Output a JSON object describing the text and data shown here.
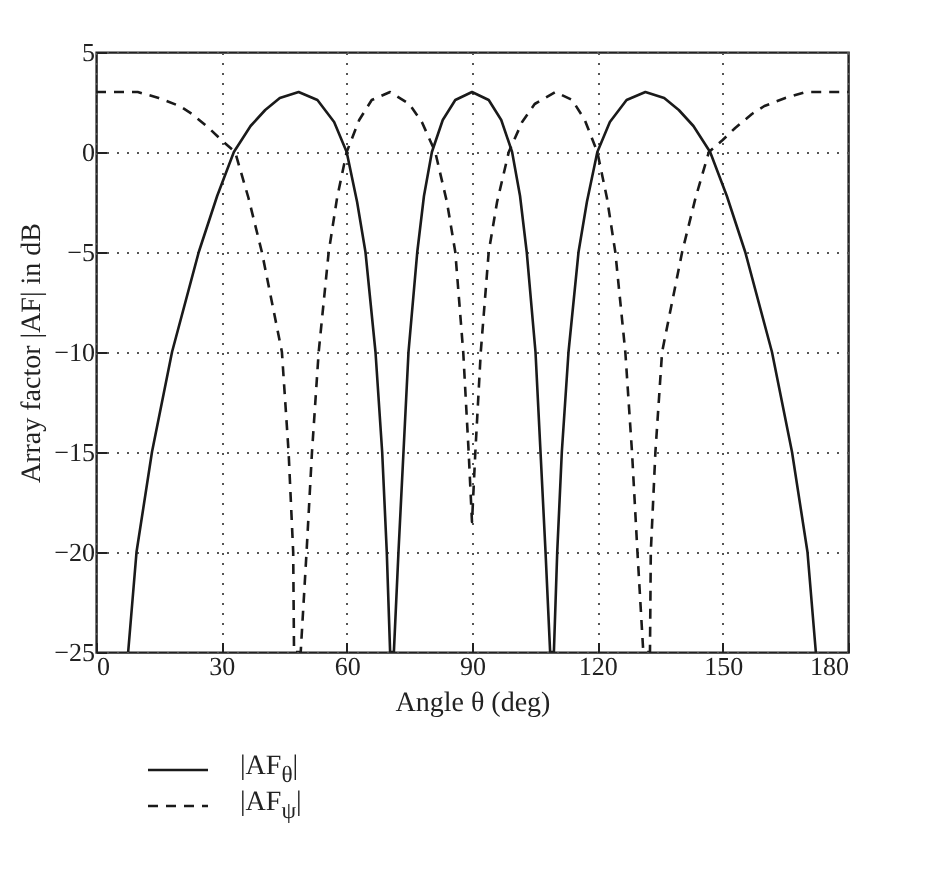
{
  "chart_data": {
    "type": "line",
    "xlabel": "Angle θ (deg)",
    "ylabel": "Array factor |AF| in dB",
    "xlim": [
      0,
      180
    ],
    "xticks": [
      0,
      30,
      60,
      90,
      120,
      150,
      180
    ],
    "ylim": [
      -25,
      5
    ],
    "yticks": [
      -25,
      -20,
      -15,
      -10,
      -5,
      0,
      5
    ],
    "grid": true,
    "legend": "bottom",
    "series": [
      {
        "name": "|AF$_{θ}$|",
        "color": "#1a1a1a",
        "line_style": "solid",
        "x": [
          7.7,
          9.7,
          13.4,
          18.2,
          24.6,
          29,
          33,
          37,
          40.5,
          44,
          48.5,
          53,
          57,
          60,
          62.5,
          64.5,
          66.9,
          68.5,
          69.6,
          70.4,
          71.3,
          72.4,
          73.6,
          74.8,
          76.9,
          78.5,
          80.4,
          83,
          86,
          90,
          94,
          97,
          99.6,
          101.5,
          103.1,
          105.2,
          106.4,
          107.6,
          108.7,
          109.6,
          110.4,
          111.5,
          113.1,
          115.5,
          117.5,
          120,
          123,
          127,
          131.5,
          136,
          139.5,
          143,
          147,
          151,
          155.4,
          161.8,
          166.6,
          170.3,
          172.3
        ],
        "values": [
          -25,
          -20,
          -15,
          -10,
          -5,
          -2.2,
          0,
          1.3,
          2.1,
          2.7,
          3,
          2.6,
          1.5,
          0,
          -2.5,
          -5,
          -10,
          -15,
          -20,
          -25,
          -25,
          -20,
          -15,
          -10,
          -5,
          -2.2,
          0,
          1.6,
          2.6,
          3,
          2.6,
          1.6,
          0,
          -2.2,
          -5,
          -10,
          -15,
          -20,
          -25,
          -25,
          -20,
          -15,
          -10,
          -5,
          -2.5,
          0,
          1.5,
          2.6,
          3,
          2.7,
          2.1,
          1.3,
          0,
          -2.2,
          -5,
          -10,
          -15,
          -20,
          -25
        ]
      },
      {
        "name": "|AF$_{ψ}$|",
        "color": "#1a1a1a",
        "line_style": "dashed",
        "x": [
          0,
          5,
          10,
          15,
          20,
          23,
          27,
          30,
          33.3,
          36.5,
          39.7,
          44.5,
          46.1,
          47.2,
          47.4,
          49,
          50.4,
          51.7,
          53.3,
          55.7,
          57.7,
          60,
          63,
          66,
          70.4,
          75,
          78,
          81.2,
          84,
          86,
          87.9,
          89.2,
          90,
          90.8,
          92.1,
          94,
          96,
          98.8,
          102,
          105,
          110,
          114,
          117,
          120,
          122.3,
          124.3,
          126.7,
          128.3,
          129.6,
          131,
          132.6,
          132.8,
          133.9,
          135.5,
          140.3,
          143.5,
          146.7,
          150,
          153,
          157,
          160,
          165,
          170,
          175,
          180
        ],
        "values": [
          3,
          3,
          3,
          2.7,
          2.3,
          1.9,
          1.2,
          0.6,
          0,
          -2.3,
          -5,
          -10,
          -15,
          -20,
          -25,
          -25,
          -20,
          -15,
          -10,
          -5,
          -2.3,
          0,
          1.6,
          2.6,
          3,
          2.4,
          1.5,
          0,
          -2.5,
          -5,
          -10,
          -15,
          -18.5,
          -15,
          -10,
          -5,
          -2.5,
          0,
          1.5,
          2.4,
          3,
          2.6,
          1.6,
          0,
          -2.3,
          -5,
          -10,
          -15,
          -20,
          -25,
          -25,
          -20,
          -15,
          -10,
          -5,
          -2.3,
          0,
          0.6,
          1.2,
          1.9,
          2.3,
          2.7,
          3,
          3,
          3
        ]
      }
    ]
  }
}
